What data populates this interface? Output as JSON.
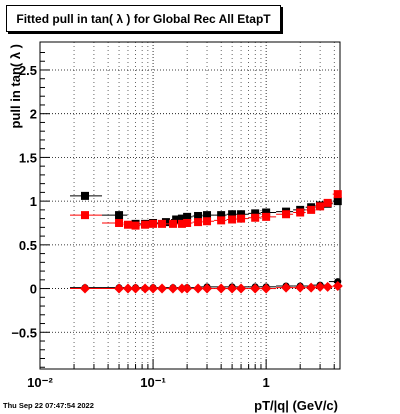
{
  "title": "Fitted pull in tan( λ ) for Global Rec All EtapT",
  "timestamp": "Thu Sep 22 07:47:54 2022",
  "chart_data": {
    "type": "scatter",
    "title": "Fitted pull in tan( λ ) for Global Rec All EtapT",
    "xlabel": "pT/|q| (GeV/c)",
    "ylabel": "pull in tan( λ )",
    "xscale": "log",
    "xlim": [
      0.01,
      4.5
    ],
    "ylim": [
      -0.92,
      2.82
    ],
    "grid": true,
    "x_tick_labels": [
      "10⁻²",
      "10⁻¹",
      "1"
    ],
    "x_tick_values": [
      0.01,
      0.1,
      1
    ],
    "y_tick_labels": [
      "−0.5",
      "0",
      "0.5",
      "1",
      "1.5",
      "2",
      "2.5"
    ],
    "y_tick_values": [
      -0.5,
      0,
      0.5,
      1,
      1.5,
      2,
      2.5
    ],
    "series": [
      {
        "marker": "square",
        "color": "#000000",
        "points": [
          [
            0.025,
            1.06
          ],
          [
            0.05,
            0.84
          ],
          [
            0.07,
            0.74
          ],
          [
            0.085,
            0.74
          ],
          [
            0.1,
            0.75
          ],
          [
            0.13,
            0.76
          ],
          [
            0.16,
            0.79
          ],
          [
            0.18,
            0.8
          ],
          [
            0.2,
            0.82
          ],
          [
            0.25,
            0.83
          ],
          [
            0.3,
            0.84
          ],
          [
            0.4,
            0.84
          ],
          [
            0.5,
            0.85
          ],
          [
            0.6,
            0.85
          ],
          [
            0.8,
            0.86
          ],
          [
            1.0,
            0.87
          ],
          [
            1.5,
            0.88
          ],
          [
            2.0,
            0.9
          ],
          [
            2.5,
            0.93
          ],
          [
            3.0,
            0.95
          ],
          [
            3.5,
            0.97
          ],
          [
            4.3,
            1.0
          ]
        ]
      },
      {
        "marker": "square",
        "color": "#ff0000",
        "points": [
          [
            0.025,
            0.84
          ],
          [
            0.05,
            0.75
          ],
          [
            0.06,
            0.73
          ],
          [
            0.07,
            0.72
          ],
          [
            0.085,
            0.73
          ],
          [
            0.1,
            0.74
          ],
          [
            0.12,
            0.74
          ],
          [
            0.15,
            0.74
          ],
          [
            0.18,
            0.74
          ],
          [
            0.2,
            0.75
          ],
          [
            0.25,
            0.76
          ],
          [
            0.3,
            0.77
          ],
          [
            0.4,
            0.78
          ],
          [
            0.5,
            0.79
          ],
          [
            0.6,
            0.8
          ],
          [
            0.8,
            0.81
          ],
          [
            1.0,
            0.82
          ],
          [
            1.5,
            0.85
          ],
          [
            2.0,
            0.87
          ],
          [
            2.5,
            0.9
          ],
          [
            3.0,
            0.94
          ],
          [
            3.5,
            0.98
          ],
          [
            4.3,
            1.08
          ]
        ]
      },
      {
        "marker": "circle",
        "color": "#000000",
        "points": [
          [
            0.025,
            0.01
          ],
          [
            0.05,
            0.01
          ],
          [
            0.07,
            0.01
          ],
          [
            0.1,
            0.01
          ],
          [
            0.15,
            0.01
          ],
          [
            0.2,
            0.01
          ],
          [
            0.3,
            0.02
          ],
          [
            0.5,
            0.02
          ],
          [
            0.8,
            0.02
          ],
          [
            1.0,
            0.02
          ],
          [
            1.5,
            0.03
          ],
          [
            2.0,
            0.03
          ],
          [
            3.0,
            0.04
          ],
          [
            4.3,
            0.08
          ]
        ]
      },
      {
        "marker": "diamond",
        "color": "#ff0000",
        "points": [
          [
            0.025,
            0.0
          ],
          [
            0.05,
            0.0
          ],
          [
            0.06,
            0.0
          ],
          [
            0.07,
            0.0
          ],
          [
            0.085,
            0.0
          ],
          [
            0.1,
            0.0
          ],
          [
            0.12,
            0.0
          ],
          [
            0.15,
            0.0
          ],
          [
            0.18,
            0.0
          ],
          [
            0.2,
            0.0
          ],
          [
            0.25,
            0.0
          ],
          [
            0.3,
            0.0
          ],
          [
            0.4,
            0.0
          ],
          [
            0.5,
            0.0
          ],
          [
            0.6,
            0.0
          ],
          [
            0.8,
            0.0
          ],
          [
            1.0,
            0.0
          ],
          [
            1.5,
            0.01
          ],
          [
            2.0,
            0.01
          ],
          [
            2.5,
            0.01
          ],
          [
            3.0,
            0.02
          ],
          [
            3.5,
            0.02
          ],
          [
            4.3,
            0.03
          ]
        ]
      }
    ]
  }
}
